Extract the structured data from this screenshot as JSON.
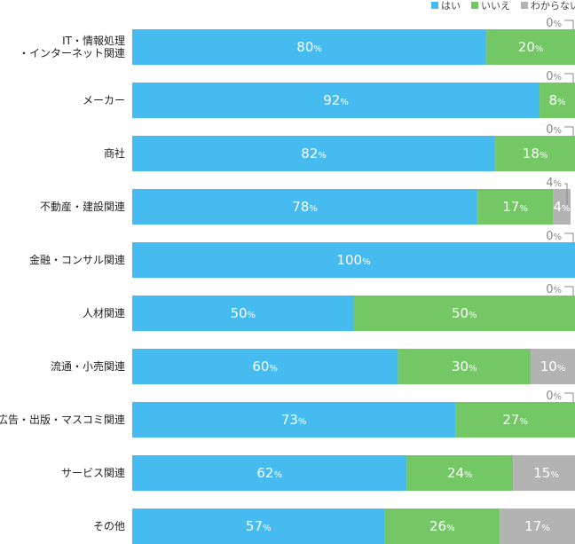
{
  "chart_data": {
    "type": "bar",
    "orientation": "horizontal",
    "stacked": true,
    "xlim": [
      0,
      100
    ],
    "unit": "%",
    "legend_position": "top-right",
    "categories": [
      [
        "IT・情報処理",
        "・インターネット関連"
      ],
      [
        "メーカー"
      ],
      [
        "商社"
      ],
      [
        "不動産・建設関連"
      ],
      [
        "金融・コンサル関連"
      ],
      [
        "人材関連"
      ],
      [
        "流通・小売関連"
      ],
      [
        "広告・出版・マスコミ関連"
      ],
      [
        "サービス関連"
      ],
      [
        "その他"
      ]
    ],
    "series": [
      {
        "name": "はい",
        "color": "#45bbef",
        "values": [
          80,
          92,
          82,
          78,
          100,
          50,
          60,
          73,
          62,
          57
        ]
      },
      {
        "name": "いいえ",
        "color": "#73c765",
        "values": [
          20,
          8,
          18,
          17,
          0,
          50,
          30,
          27,
          24,
          26
        ]
      },
      {
        "name": "わからない",
        "color": "#b3b3b3",
        "values": [
          0,
          0,
          0,
          4,
          0,
          0,
          10,
          0,
          15,
          17
        ]
      }
    ]
  }
}
